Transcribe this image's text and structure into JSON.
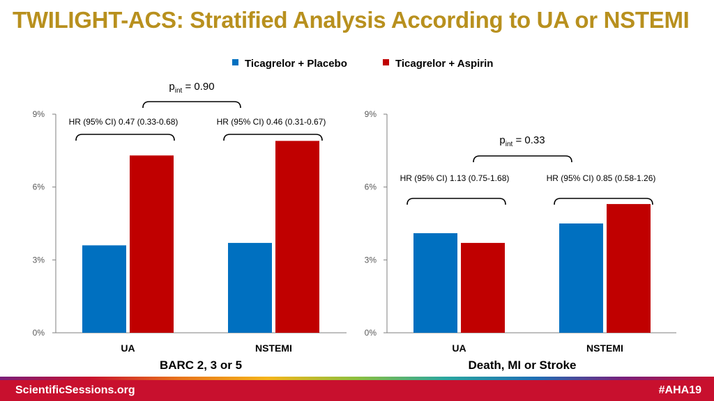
{
  "slide": {
    "title": "TWILIGHT-ACS: Stratified Analysis According to UA or NSTEMI",
    "title_color": "#B8901E"
  },
  "legend": [
    {
      "label": "Ticagrelor + Placebo",
      "color": "#0070C0"
    },
    {
      "label": "Ticagrelor + Aspirin",
      "color": "#C00000"
    }
  ],
  "chart_data": [
    {
      "type": "bar",
      "categories": [
        "UA",
        "NSTEMI"
      ],
      "series": [
        {
          "name": "Ticagrelor + Placebo",
          "values": [
            3.6,
            3.7
          ]
        },
        {
          "name": "Ticagrelor + Aspirin",
          "values": [
            7.3,
            7.9
          ]
        }
      ],
      "xlabel": "BARC 2, 3 or 5",
      "ylabel": "",
      "ylim": [
        0,
        9
      ],
      "yticks": [
        "0%",
        "3%",
        "6%",
        "9%"
      ],
      "annotations": {
        "hr": [
          "HR (95% CI) 0.47 (0.33-0.68)",
          "HR (95% CI) 0.46 (0.31-0.67)"
        ],
        "p_int": {
          "p": "p",
          "sub": "int",
          "rest": " = 0.90"
        }
      }
    },
    {
      "type": "bar",
      "categories": [
        "UA",
        "NSTEMI"
      ],
      "series": [
        {
          "name": "Ticagrelor + Placebo",
          "values": [
            4.1,
            4.5
          ]
        },
        {
          "name": "Ticagrelor + Aspirin",
          "values": [
            3.7,
            5.3
          ]
        }
      ],
      "xlabel": "Death, MI or Stroke",
      "ylabel": "",
      "ylim": [
        0,
        9
      ],
      "yticks": [
        "0%",
        "3%",
        "6%",
        "9%"
      ],
      "annotations": {
        "hr": [
          "HR (95% CI) 1.13 (0.75-1.68)",
          "HR (95% CI) 0.85 (0.58-1.26)"
        ],
        "p_int": {
          "p": "p",
          "sub": "int",
          "rest": " = 0.33"
        }
      }
    }
  ],
  "footer": {
    "left": "ScientificSessions.org",
    "right": "#AHA19",
    "bar_color": "#C8102E"
  }
}
